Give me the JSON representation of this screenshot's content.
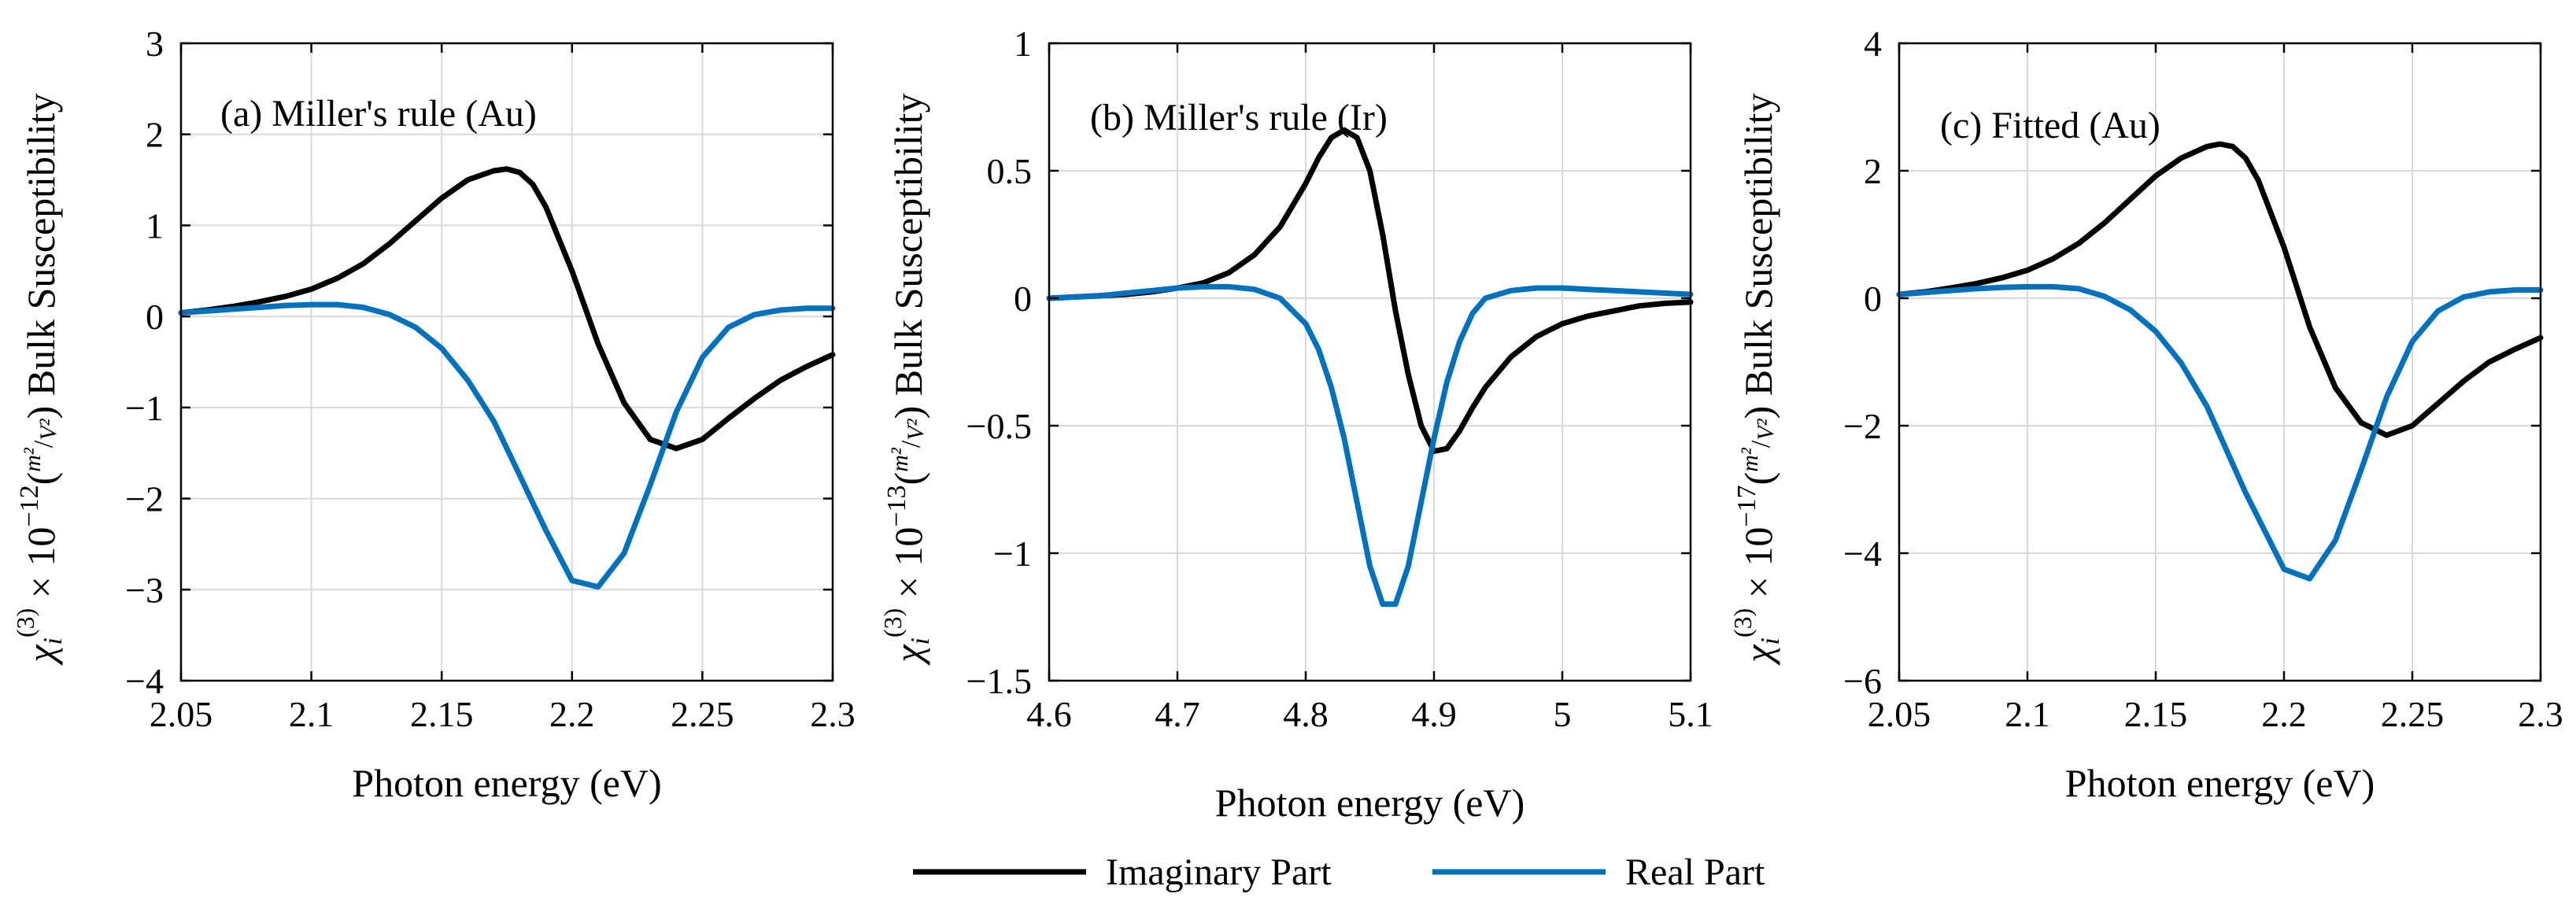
{
  "colors": {
    "imaginary": "#000000",
    "real": "#0072BD",
    "grid": "#d9d9d9"
  },
  "legend": {
    "items": [
      {
        "label": "Imaginary Part",
        "series": "imaginary"
      },
      {
        "label": "Real Part",
        "series": "real"
      }
    ],
    "placement": "bottom-center"
  },
  "chart_data": [
    {
      "type": "line",
      "annotation": "(a) Miller's rule (Au)",
      "xlabel": "Photon energy (eV)",
      "ylabel": {
        "chi": "χ",
        "sub": "i",
        "sup": "(3)",
        "times": " × 10",
        "exp": "−12",
        "unit_num": "m²",
        "unit_den": "V²",
        "suffix": "Bulk Susceptibility"
      },
      "xlim": [
        2.05,
        2.3
      ],
      "ylim": [
        -4,
        3
      ],
      "xticks": [
        2.05,
        2.1,
        2.15,
        2.2,
        2.25,
        2.3
      ],
      "xtick_labels": [
        "2.05",
        "2.1",
        "2.15",
        "2.2",
        "2.25",
        "2.3"
      ],
      "yticks": [
        -4,
        -3,
        -2,
        -1,
        0,
        1,
        2,
        3
      ],
      "ytick_labels": [
        "−4",
        "−3",
        "−2",
        "−1",
        "0",
        "1",
        "2",
        "3"
      ],
      "grid": true,
      "x": [
        2.05,
        2.06,
        2.07,
        2.08,
        2.09,
        2.1,
        2.11,
        2.12,
        2.13,
        2.14,
        2.15,
        2.16,
        2.17,
        2.175,
        2.18,
        2.185,
        2.19,
        2.2,
        2.21,
        2.22,
        2.23,
        2.24,
        2.25,
        2.26,
        2.27,
        2.28,
        2.29,
        2.3
      ],
      "series": [
        {
          "name": "Imaginary Part",
          "key": "imaginary",
          "values": [
            0.04,
            0.07,
            0.11,
            0.16,
            0.22,
            0.3,
            0.42,
            0.58,
            0.8,
            1.05,
            1.3,
            1.5,
            1.6,
            1.62,
            1.58,
            1.45,
            1.2,
            0.5,
            -0.3,
            -0.95,
            -1.35,
            -1.45,
            -1.35,
            -1.12,
            -0.9,
            -0.7,
            -0.55,
            -0.42
          ]
        },
        {
          "name": "Real Part",
          "key": "real",
          "values": [
            0.04,
            0.06,
            0.08,
            0.1,
            0.12,
            0.13,
            0.13,
            0.1,
            0.02,
            -0.12,
            -0.35,
            -0.7,
            -1.15,
            -1.45,
            -1.75,
            -2.05,
            -2.35,
            -2.9,
            -2.97,
            -2.6,
            -1.85,
            -1.05,
            -0.45,
            -0.12,
            0.02,
            0.07,
            0.09,
            0.09
          ]
        }
      ]
    },
    {
      "type": "line",
      "annotation": "(b) Miller's rule (Ir)",
      "xlabel": "Photon energy (eV)",
      "ylabel": {
        "chi": "χ",
        "sub": "i",
        "sup": "(3)",
        "times": " × 10",
        "exp": "−13",
        "unit_num": "m²",
        "unit_den": "V²",
        "suffix": "Bulk Susceptibility"
      },
      "xlim": [
        4.6,
        5.1
      ],
      "ylim": [
        -1.5,
        1
      ],
      "xticks": [
        4.6,
        4.7,
        4.8,
        4.9,
        5,
        5.1
      ],
      "xtick_labels": [
        "4.6",
        "4.7",
        "4.8",
        "4.9",
        "5",
        "5.1"
      ],
      "yticks": [
        -1.5,
        -1,
        -0.5,
        0,
        0.5,
        1
      ],
      "ytick_labels": [
        "−1.5",
        "−1",
        "−0.5",
        "0",
        "0.5",
        "1"
      ],
      "grid": true,
      "x": [
        4.6,
        4.62,
        4.64,
        4.66,
        4.68,
        4.7,
        4.72,
        4.74,
        4.76,
        4.78,
        4.8,
        4.81,
        4.82,
        4.83,
        4.84,
        4.85,
        4.86,
        4.87,
        4.88,
        4.89,
        4.9,
        4.91,
        4.92,
        4.93,
        4.94,
        4.96,
        4.98,
        5.0,
        5.02,
        5.04,
        5.06,
        5.08,
        5.1
      ],
      "series": [
        {
          "name": "Imaginary Part",
          "key": "imaginary",
          "values": [
            0.0,
            0.005,
            0.01,
            0.015,
            0.025,
            0.04,
            0.06,
            0.1,
            0.17,
            0.28,
            0.45,
            0.55,
            0.63,
            0.66,
            0.63,
            0.5,
            0.25,
            -0.05,
            -0.3,
            -0.5,
            -0.6,
            -0.59,
            -0.52,
            -0.43,
            -0.35,
            -0.23,
            -0.15,
            -0.1,
            -0.07,
            -0.05,
            -0.03,
            -0.02,
            -0.015
          ]
        },
        {
          "name": "Real Part",
          "key": "real",
          "values": [
            0.0,
            0.005,
            0.01,
            0.02,
            0.03,
            0.04,
            0.045,
            0.045,
            0.035,
            0.0,
            -0.1,
            -0.2,
            -0.35,
            -0.55,
            -0.8,
            -1.05,
            -1.2,
            -1.2,
            -1.05,
            -0.8,
            -0.55,
            -0.33,
            -0.17,
            -0.06,
            0.0,
            0.03,
            0.04,
            0.04,
            0.035,
            0.03,
            0.025,
            0.02,
            0.015
          ]
        }
      ]
    },
    {
      "type": "line",
      "annotation": "(c) Fitted (Au)",
      "xlabel": "Photon energy (eV)",
      "ylabel": {
        "chi": "χ",
        "sub": "i",
        "sup": "(3)",
        "times": " × 10",
        "exp": "−17",
        "unit_num": "m²",
        "unit_den": "V²",
        "suffix": "Bulk Susceptibility"
      },
      "xlim": [
        2.05,
        2.3
      ],
      "ylim": [
        -6,
        4
      ],
      "xticks": [
        2.05,
        2.1,
        2.15,
        2.2,
        2.25,
        2.3
      ],
      "xtick_labels": [
        "2.05",
        "2.1",
        "2.15",
        "2.2",
        "2.25",
        "2.3"
      ],
      "yticks": [
        -6,
        -4,
        -2,
        0,
        2,
        4
      ],
      "ytick_labels": [
        "−6",
        "−4",
        "−2",
        "0",
        "2",
        "4"
      ],
      "grid": true,
      "x": [
        2.05,
        2.06,
        2.07,
        2.08,
        2.09,
        2.1,
        2.11,
        2.12,
        2.13,
        2.14,
        2.15,
        2.16,
        2.17,
        2.175,
        2.18,
        2.185,
        2.19,
        2.2,
        2.21,
        2.22,
        2.23,
        2.24,
        2.25,
        2.26,
        2.27,
        2.28,
        2.29,
        2.3
      ],
      "series": [
        {
          "name": "Imaginary Part",
          "key": "imaginary",
          "values": [
            0.06,
            0.1,
            0.16,
            0.23,
            0.32,
            0.44,
            0.62,
            0.86,
            1.18,
            1.55,
            1.92,
            2.2,
            2.38,
            2.42,
            2.38,
            2.2,
            1.85,
            0.8,
            -0.45,
            -1.4,
            -1.95,
            -2.15,
            -2.0,
            -1.65,
            -1.3,
            -1.0,
            -0.8,
            -0.62
          ]
        },
        {
          "name": "Real Part",
          "key": "real",
          "values": [
            0.06,
            0.09,
            0.12,
            0.15,
            0.17,
            0.18,
            0.18,
            0.15,
            0.03,
            -0.18,
            -0.52,
            -1.02,
            -1.7,
            -2.15,
            -2.6,
            -3.05,
            -3.45,
            -4.25,
            -4.4,
            -3.8,
            -2.7,
            -1.55,
            -0.68,
            -0.2,
            0.02,
            0.1,
            0.13,
            0.13
          ]
        }
      ]
    }
  ]
}
